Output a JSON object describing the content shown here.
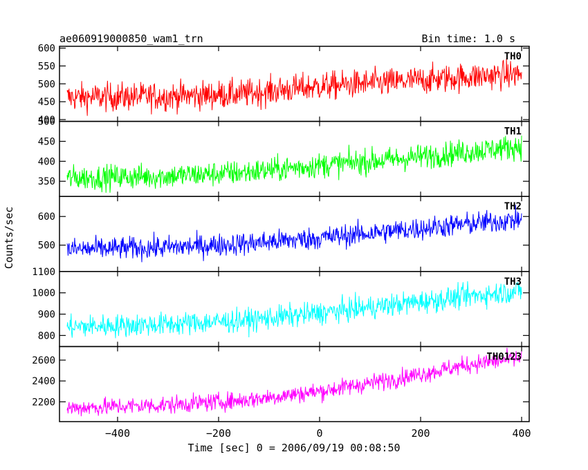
{
  "header": {
    "title": "ae060919000850_wam1_trn",
    "bin_time": "Bin time: 1.0 s"
  },
  "chart_data": {
    "type": "line",
    "title": "ae060919000850_wam1_trn",
    "xlabel": "Time [sec] 0 = 2006/09/19 00:08:50",
    "ylabel": "Counts/sec",
    "xlim": [
      -515,
      415
    ],
    "x_ticks": [
      -400,
      -200,
      0,
      200,
      400
    ],
    "x_tick_labels": [
      "−400",
      "−200",
      "0",
      "200",
      "400"
    ],
    "grid": false,
    "series": [
      {
        "name": "TH0",
        "color": "#ff0000",
        "ylim": [
          395,
          605
        ],
        "y_ticks": [
          400,
          450,
          500,
          550,
          600
        ],
        "y_tick_labels": [
          "400",
          "450",
          "500",
          "550",
          "600"
        ],
        "trend": [
          [
            -500,
            462
          ],
          [
            -300,
            465
          ],
          [
            -150,
            472
          ],
          [
            0,
            493
          ],
          [
            150,
            505
          ],
          [
            300,
            520
          ],
          [
            400,
            528
          ]
        ],
        "noise": 28
      },
      {
        "name": "TH1",
        "color": "#00ff00",
        "ylim": [
          312,
          500
        ],
        "y_ticks": [
          350,
          400,
          450,
          500
        ],
        "y_tick_labels": [
          "350",
          "400",
          "450",
          "500"
        ],
        "trend": [
          [
            -500,
            358
          ],
          [
            -300,
            363
          ],
          [
            -150,
            372
          ],
          [
            0,
            390
          ],
          [
            150,
            405
          ],
          [
            300,
            425
          ],
          [
            400,
            438
          ]
        ],
        "noise": 22
      },
      {
        "name": "TH2",
        "color": "#0000ff",
        "ylim": [
          408,
          670
        ],
        "y_ticks": [
          500,
          600
        ],
        "y_tick_labels": [
          "500",
          "600"
        ],
        "trend": [
          [
            -500,
            485
          ],
          [
            -300,
            492
          ],
          [
            -150,
            505
          ],
          [
            0,
            525
          ],
          [
            150,
            550
          ],
          [
            300,
            575
          ],
          [
            400,
            590
          ]
        ],
        "noise": 28
      },
      {
        "name": "TH3",
        "color": "#00ffff",
        "ylim": [
          748,
          1100
        ],
        "y_ticks": [
          800,
          900,
          1000,
          1100
        ],
        "y_tick_labels": [
          "800",
          "900",
          "1000",
          "1100"
        ],
        "trend": [
          [
            -500,
            840
          ],
          [
            -300,
            853
          ],
          [
            -150,
            870
          ],
          [
            0,
            905
          ],
          [
            150,
            945
          ],
          [
            300,
            985
          ],
          [
            400,
            1010
          ]
        ],
        "noise": 38
      },
      {
        "name": "TH0123",
        "color": "#ff00ff",
        "ylim": [
          2010,
          2730
        ],
        "y_ticks": [
          2200,
          2400,
          2600
        ],
        "y_tick_labels": [
          "2200",
          "2400",
          "2600"
        ],
        "trend": [
          [
            -500,
            2140
          ],
          [
            -300,
            2170
          ],
          [
            -150,
            2215
          ],
          [
            0,
            2300
          ],
          [
            150,
            2420
          ],
          [
            300,
            2560
          ],
          [
            400,
            2620
          ]
        ],
        "noise": 60
      }
    ]
  }
}
